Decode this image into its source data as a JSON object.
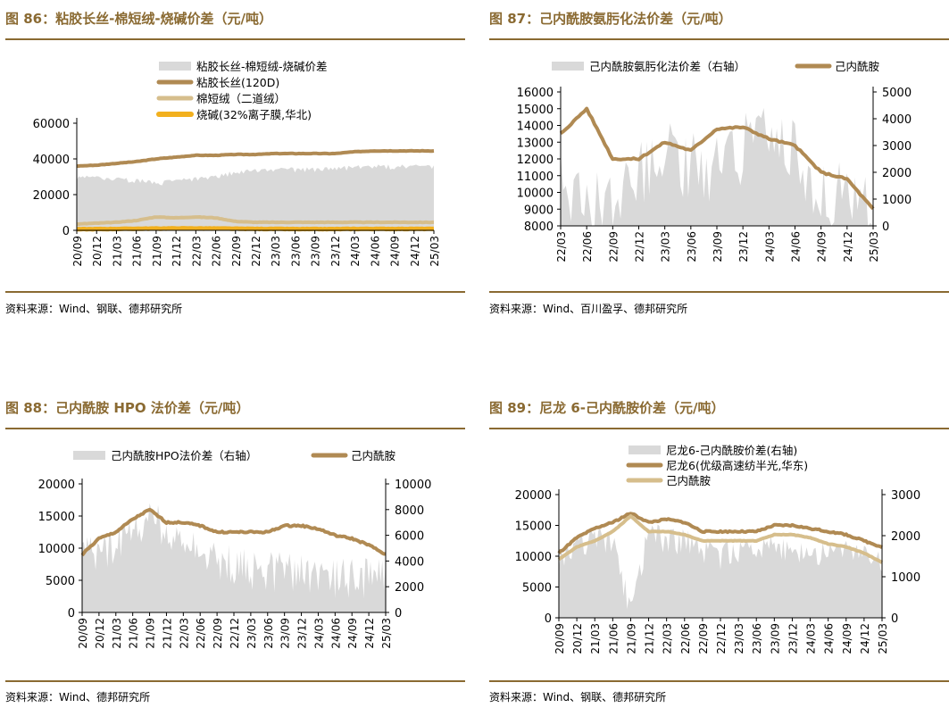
{
  "colors": {
    "spread": "#d9d9d9",
    "brown": "#b08a53",
    "beige": "#d6be8c",
    "yellow": "#f2b01e",
    "title": "#8a6a32"
  },
  "panels": [
    {
      "title": "图 86：粘胶长丝-棉短绒-烧碱价差（元/吨）",
      "source": "资料来源：Wind、钢联、德邦研究所",
      "chart_data": {
        "type": "area+line",
        "title": "粘胶长丝-棉短绒-烧碱价差（元/吨）",
        "x": [
          "20/09",
          "20/12",
          "21/03",
          "21/06",
          "21/09",
          "21/12",
          "22/03",
          "22/06",
          "22/09",
          "22/12",
          "23/03",
          "23/06",
          "23/09",
          "23/12",
          "24/03",
          "24/06",
          "24/09",
          "24/12",
          "25/03"
        ],
        "ylim": [
          0,
          60000
        ],
        "yticks": [
          "60000",
          "40000",
          "20000",
          "0"
        ],
        "legend": [
          "粘胶长丝-棉短绒-烧碱价差",
          "粘胶长丝(120D)",
          "棉短绒（二道绒）",
          "烧碱(32%离子膜,华北)"
        ],
        "series": [
          {
            "name": "粘胶长丝-棉短绒-烧碱价差",
            "kind": "area",
            "values": [
              30000,
              29500,
              29000,
              28500,
              26500,
              28000,
              29000,
              30000,
              33000,
              33500,
              34000,
              34500,
              34500,
              35000,
              35500,
              36000,
              36000,
              36000,
              35800
            ]
          },
          {
            "name": "粘胶长丝(120D)",
            "kind": "line",
            "values": [
              36000,
              36500,
              37500,
              38500,
              40000,
              41000,
              42000,
              42000,
              42500,
              42500,
              43000,
              43000,
              43000,
              43000,
              44000,
              44500,
              44500,
              44500,
              44500
            ]
          },
          {
            "name": "棉短绒（二道绒）",
            "kind": "line",
            "values": [
              3500,
              4000,
              4500,
              5500,
              7500,
              7000,
              7500,
              7000,
              5000,
              4500,
              4500,
              4500,
              4500,
              4500,
              4500,
              4500,
              4500,
              4500,
              4500
            ]
          },
          {
            "name": "烧碱(32%离子膜,华北)",
            "kind": "line",
            "values": [
              600,
              700,
              800,
              900,
              1000,
              1100,
              1100,
              1000,
              900,
              800,
              800,
              700,
              700,
              700,
              800,
              800,
              800,
              800,
              800
            ]
          }
        ]
      }
    },
    {
      "title": "图 87：己内酰胺氨肟化法价差（元/吨）",
      "source": "资料来源：Wind、百川盈孚、德邦研究所",
      "chart_data": {
        "type": "area+line",
        "title": "己内酰胺氨肟化法价差（元/吨）",
        "x": [
          "22/03",
          "22/06",
          "22/09",
          "22/12",
          "23/03",
          "23/06",
          "23/09",
          "23/12",
          "24/03",
          "24/06",
          "24/09",
          "24/12",
          "25/03"
        ],
        "ylim_left": [
          8000,
          16000
        ],
        "ylim_right": [
          0,
          5000
        ],
        "yticks_left": [
          "16000",
          "15000",
          "14000",
          "13000",
          "12000",
          "11000",
          "10000",
          "9000",
          "8000"
        ],
        "yticks_right": [
          "5000",
          "4000",
          "3000",
          "2000",
          "1000",
          "0"
        ],
        "legend": [
          "己内酰胺氨肟化法价差（右轴）",
          "己内酰胺"
        ],
        "series": [
          {
            "name": "己内酰胺氨肟化法价差（右轴）",
            "kind": "area",
            "axis": "right",
            "values": [
              1500,
              800,
              500,
              2000,
              2800,
              2200,
              2000,
              3000,
              3500,
              2500,
              1500,
              1200,
              800
            ]
          },
          {
            "name": "己内酰胺",
            "kind": "line",
            "axis": "left",
            "values": [
              13500,
              15000,
              12000,
              12000,
              13000,
              12500,
              13800,
              13900,
              13200,
              12800,
              11200,
              10800,
              9000
            ]
          }
        ]
      }
    },
    {
      "title": "图 88：己内酰胺 HPO 法价差（元/吨）",
      "source": "资料来源：Wind、德邦研究所",
      "chart_data": {
        "type": "area+line",
        "title": "己内酰胺 HPO 法价差（元/吨）",
        "x": [
          "20/09",
          "20/12",
          "21/03",
          "21/06",
          "21/09",
          "21/12",
          "22/03",
          "22/06",
          "22/09",
          "22/12",
          "23/03",
          "23/06",
          "23/09",
          "23/12",
          "24/03",
          "24/06",
          "24/09",
          "24/12",
          "25/03"
        ],
        "ylim_left": [
          0,
          20000
        ],
        "ylim_right": [
          0,
          10000
        ],
        "yticks_left": [
          "20000",
          "15000",
          "10000",
          "5000",
          "0"
        ],
        "yticks_right": [
          "10000",
          "8000",
          "6000",
          "4000",
          "2000",
          "0"
        ],
        "legend": [
          "己内酰胺HPO法价差（右轴）",
          "己内酰胺"
        ],
        "series": [
          {
            "name": "己内酰胺HPO法价差（右轴）",
            "kind": "area",
            "axis": "right",
            "values": [
              4500,
              5000,
              5500,
              6000,
              8000,
              6500,
              5500,
              5000,
              4500,
              4000,
              3500,
              3500,
              3500,
              3500,
              3000,
              3000,
              3000,
              3000,
              3000
            ]
          },
          {
            "name": "己内酰胺",
            "kind": "line",
            "axis": "left",
            "values": [
              9000,
              11500,
              12500,
              14500,
              16000,
              14000,
              14000,
              13500,
              12500,
              12500,
              12500,
              12500,
              13500,
              13500,
              13000,
              12000,
              11500,
              10500,
              9000
            ]
          }
        ]
      }
    },
    {
      "title": "图 89：尼龙 6-己内酰胺价差（元/吨）",
      "source": "资料来源：Wind、钢联、德邦研究所",
      "chart_data": {
        "type": "area+line",
        "title": "尼龙 6-己内酰胺价差（元/吨）",
        "x": [
          "20/09",
          "20/12",
          "21/03",
          "21/06",
          "21/09",
          "21/12",
          "22/03",
          "22/06",
          "22/09",
          "22/12",
          "23/03",
          "23/06",
          "23/09",
          "23/12",
          "24/03",
          "24/06",
          "24/09",
          "24/12",
          "25/03"
        ],
        "ylim_left": [
          0,
          20000
        ],
        "ylim_right": [
          0,
          3000
        ],
        "yticks_left": [
          "20000",
          "15000",
          "10000",
          "5000",
          "0"
        ],
        "yticks_right": [
          "3000",
          "2000",
          "1000",
          "0"
        ],
        "legend": [
          "尼龙6-己内酰胺价差(右轴)",
          "尼龙6(优级高速纺半光,华东)",
          "己内酰胺"
        ],
        "series": [
          {
            "name": "尼龙6-己内酰胺价差(右轴)",
            "kind": "area",
            "axis": "right",
            "values": [
              1500,
              1800,
              2000,
              2000,
              300,
              2200,
              2000,
              2000,
              1800,
              1600,
              1800,
              1800,
              1800,
              1800,
              1700,
              1700,
              1700,
              1600,
              1500
            ]
          },
          {
            "name": "尼龙6(优级高速纺半光,华东)",
            "kind": "line",
            "axis": "left",
            "values": [
              10500,
              13000,
              14500,
              15500,
              17000,
              15500,
              16000,
              15500,
              14000,
              14000,
              14000,
              14000,
              15000,
              15000,
              14500,
              14000,
              13500,
              12500,
              11500
            ]
          },
          {
            "name": "己内酰胺",
            "kind": "line",
            "axis": "left",
            "values": [
              9500,
              11500,
              12500,
              14000,
              16500,
              14000,
              14000,
              13500,
              12500,
              12500,
              12500,
              12500,
              13500,
              13500,
              13000,
              12000,
              11500,
              10500,
              9000
            ]
          }
        ]
      }
    }
  ]
}
